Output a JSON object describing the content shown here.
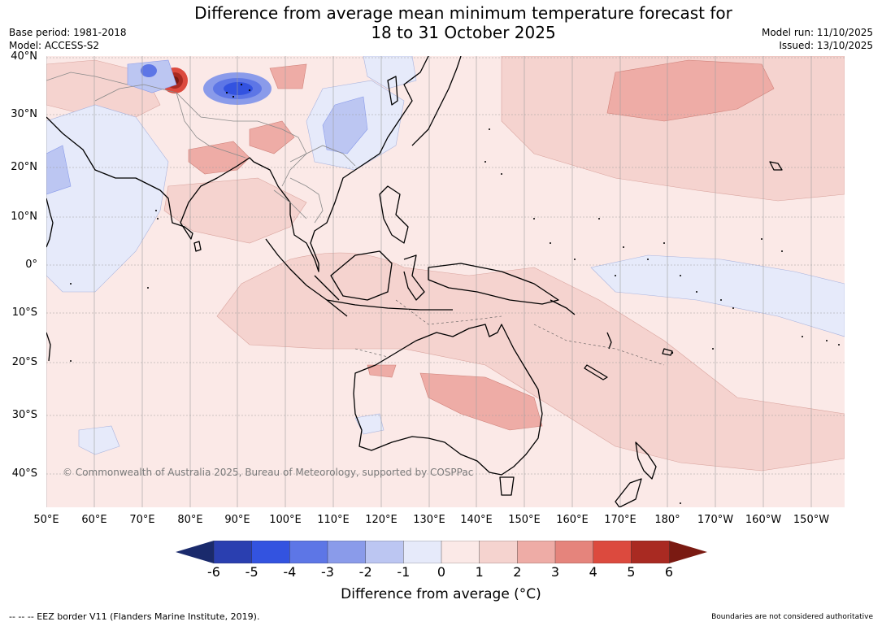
{
  "title_line1": "Difference from average mean minimum temperature forecast for",
  "title_line2": "18 to 31 October 2025",
  "base_period": "Base period: 1981-2018",
  "model": "Model: ACCESS-S2",
  "model_run": "Model run: 11/10/2025",
  "issued": "Issued: 13/10/2025",
  "lat_labels": [
    "40°N",
    "30°N",
    "20°N",
    "10°N",
    "0°",
    "10°S",
    "20°S",
    "30°S",
    "40°S"
  ],
  "lon_labels": [
    "50°E",
    "60°E",
    "70°E",
    "80°E",
    "90°E",
    "100°E",
    "110°E",
    "120°E",
    "130°E",
    "140°E",
    "150°E",
    "160°E",
    "170°E",
    "180°",
    "170°W",
    "160°W",
    "150°W"
  ],
  "copyright": "© Commonwealth of Australia 2025, Bureau of Meteorology, supported by COSPPac",
  "colorbar": {
    "ticks": [
      "-6",
      "-5",
      "-4",
      "-3",
      "-2",
      "-1",
      "0",
      "1",
      "2",
      "3",
      "4",
      "5",
      "6"
    ],
    "label": "Difference from average (°C)",
    "low_extend_color": "#1a2a6c",
    "high_extend_color": "#7a1a12",
    "colors": [
      "#2a3fb0",
      "#3353e0",
      "#5d76e6",
      "#8a9bea",
      "#bcc6f2",
      "#e6eafa",
      "#fbe9e7",
      "#f5d3cf",
      "#eeaca6",
      "#e5847c",
      "#dc4a3e",
      "#a92a22"
    ]
  },
  "eez_note": "--  --  -- EEZ border V11 (Flanders Marine Institute, 2019).",
  "disclaimer": "Boundaries are not considered authoritative"
}
